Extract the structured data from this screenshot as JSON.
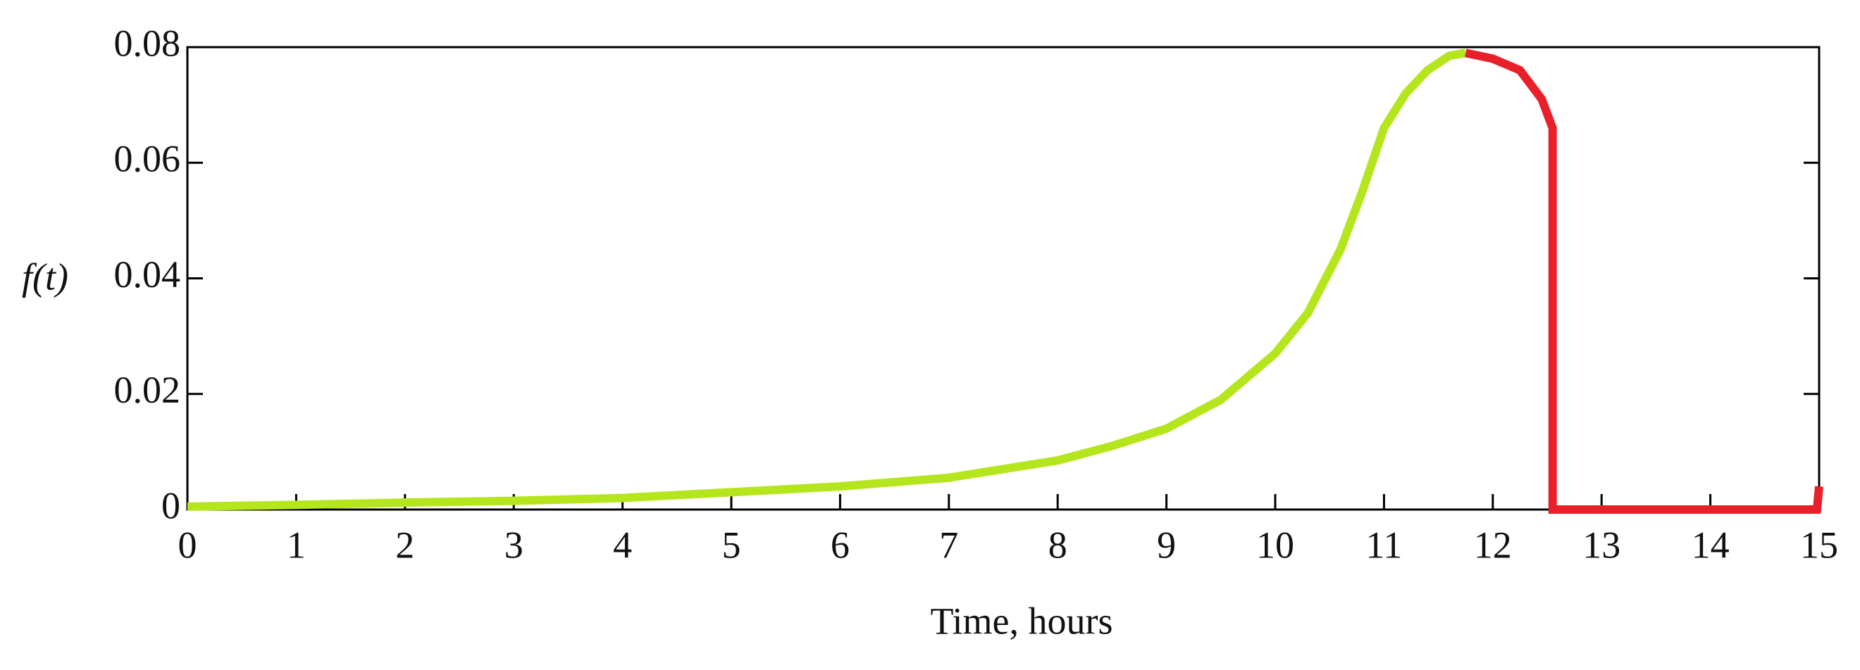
{
  "chart_data": {
    "type": "line",
    "x_label": "Time, hours",
    "y_label": "f(t)",
    "xlim": [
      0,
      15
    ],
    "ylim": [
      0,
      0.08
    ],
    "xticks": [
      0,
      1,
      2,
      3,
      4,
      5,
      6,
      7,
      8,
      9,
      10,
      11,
      12,
      13,
      14,
      15
    ],
    "yticks": [
      0,
      0.02,
      0.04,
      0.06,
      0.08
    ],
    "series": [
      {
        "color": "#b5e61d",
        "x": [
          0,
          1,
          2,
          3,
          4,
          5,
          6,
          7,
          8,
          8.5,
          9,
          9.5,
          10,
          10.3,
          10.6,
          10.8,
          11,
          11.2,
          11.4,
          11.6,
          11.75
        ],
        "values": [
          0.0005,
          0.0008,
          0.0012,
          0.0015,
          0.002,
          0.003,
          0.004,
          0.0055,
          0.0085,
          0.011,
          0.014,
          0.019,
          0.027,
          0.034,
          0.045,
          0.055,
          0.066,
          0.072,
          0.076,
          0.0785,
          0.079
        ]
      },
      {
        "color": "#e8202a",
        "x": [
          11.75,
          12,
          12.25,
          12.45,
          12.55,
          12.55,
          13,
          14,
          14.98,
          15
        ],
        "values": [
          0.079,
          0.078,
          0.076,
          0.071,
          0.066,
          0,
          0,
          0,
          0,
          0.004
        ]
      }
    ]
  }
}
